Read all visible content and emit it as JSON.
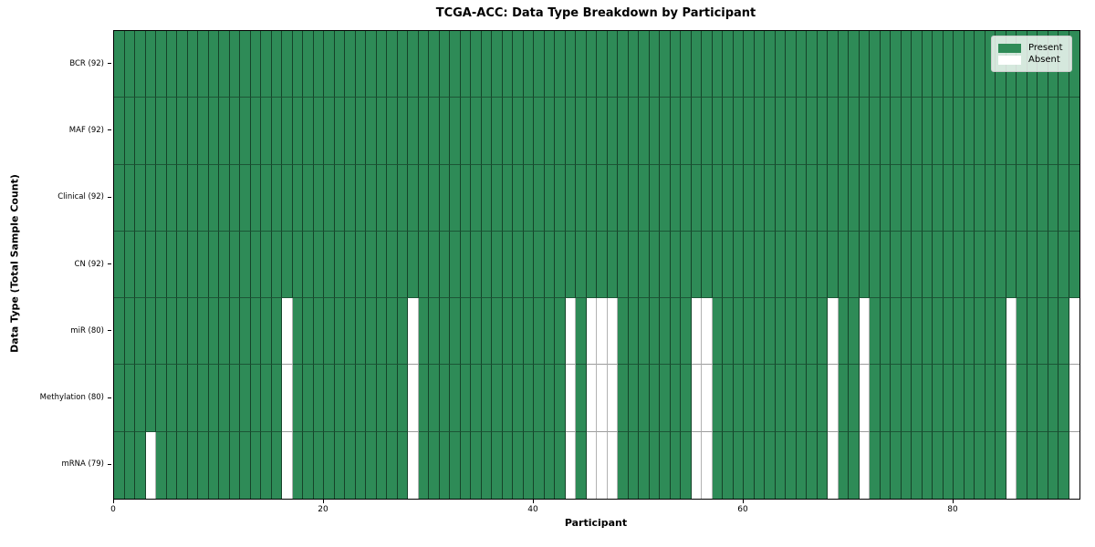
{
  "title": "TCGA-ACC: Data Type Breakdown by Participant",
  "chart_data": {
    "type": "heatmap",
    "title": "TCGA-ACC: Data Type Breakdown by Participant",
    "xlabel": "Participant",
    "ylabel": "Data Type (Total Sample Count)",
    "n_participants": 92,
    "x_ticks": [
      0,
      20,
      40,
      60,
      80
    ],
    "x_range": [
      0,
      92
    ],
    "grid": true,
    "colors": {
      "present": "#2e8b57",
      "absent": "#ffffff"
    },
    "legend": {
      "position": "upper right",
      "entries": [
        {
          "label": "Present",
          "color": "#2e8b57"
        },
        {
          "label": "Absent",
          "color": "#ffffff"
        }
      ]
    },
    "rows": [
      {
        "label": "BCR",
        "count": 92,
        "absent": []
      },
      {
        "label": "MAF",
        "count": 92,
        "absent": []
      },
      {
        "label": "Clinical",
        "count": 92,
        "absent": []
      },
      {
        "label": "CN",
        "count": 92,
        "absent": []
      },
      {
        "label": "miR",
        "count": 80,
        "absent": [
          16,
          28,
          43,
          45,
          46,
          47,
          55,
          56,
          68,
          71,
          85,
          91
        ]
      },
      {
        "label": "Methylation",
        "count": 80,
        "absent": [
          16,
          28,
          43,
          45,
          46,
          47,
          55,
          56,
          68,
          71,
          85,
          91
        ]
      },
      {
        "label": "mRNA",
        "count": 79,
        "absent": [
          3,
          16,
          28,
          43,
          45,
          46,
          47,
          55,
          56,
          68,
          71,
          85,
          91
        ]
      }
    ]
  }
}
